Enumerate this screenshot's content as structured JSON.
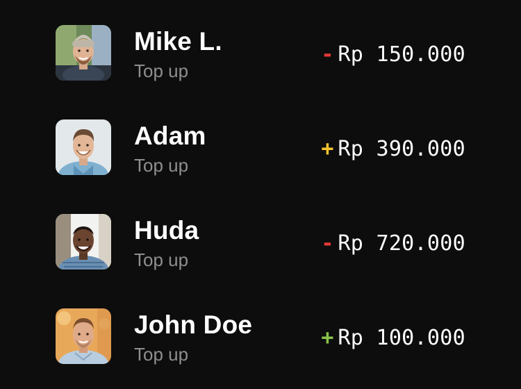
{
  "colors": {
    "background": "#0d0d0d",
    "debit": "#e53935",
    "credit_yellow": "#f4c430",
    "credit_green": "#8bc34a"
  },
  "transactions": [
    {
      "name": "Mike L.",
      "subtitle": "Top up",
      "sign": "-",
      "sign_color": "#e53935",
      "amount": "Rp 150.000",
      "avatar_icon": "avatar-photo"
    },
    {
      "name": "Adam",
      "subtitle": "Top up",
      "sign": "+",
      "sign_color": "#f4c430",
      "amount": "Rp 390.000",
      "avatar_icon": "avatar-photo"
    },
    {
      "name": "Huda",
      "subtitle": "Top up",
      "sign": "-",
      "sign_color": "#e53935",
      "amount": "Rp 720.000",
      "avatar_icon": "avatar-photo"
    },
    {
      "name": "John Doe",
      "subtitle": "Top up",
      "sign": "+",
      "sign_color": "#8bc34a",
      "amount": "Rp 100.000",
      "avatar_icon": "avatar-photo"
    }
  ]
}
